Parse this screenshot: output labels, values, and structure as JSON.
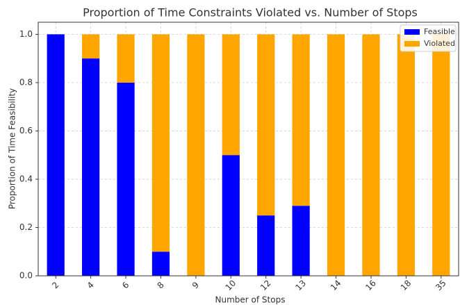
{
  "chart_data": {
    "type": "stacked_bar",
    "title": "Proportion of Time Constraints Violated vs. Number of Stops",
    "x_label": "Number of Stops",
    "y_label": "Proportion of Time Feasibility",
    "categories": [
      "2",
      "4",
      "6",
      "8",
      "9",
      "10",
      "12",
      "13",
      "14",
      "16",
      "18",
      "35"
    ],
    "series": [
      {
        "name": "Feasible",
        "color": "#0000ff",
        "values": [
          1.0,
          0.9,
          0.8,
          0.1,
          0,
          0.5,
          0.25,
          0.29,
          0,
          0,
          0,
          0
        ]
      },
      {
        "name": "Violated",
        "color": "#ffa500",
        "values": [
          0,
          0.1,
          0.2,
          0.9,
          1.0,
          0.5,
          0.75,
          0.71,
          1.0,
          1.0,
          1.0,
          1.0
        ]
      }
    ],
    "ylim": [
      0,
      1.05
    ],
    "yticks": [
      {
        "value": 0,
        "label": "0.0"
      },
      {
        "value": 0.2,
        "label": "0.2"
      },
      {
        "value": 0.4,
        "label": "0.4"
      },
      {
        "value": 0.6,
        "label": "0.6"
      },
      {
        "value": 0.8,
        "label": "0.8"
      },
      {
        "value": 1.0,
        "label": "1.0"
      }
    ],
    "grid": true,
    "legend": "upper right"
  }
}
